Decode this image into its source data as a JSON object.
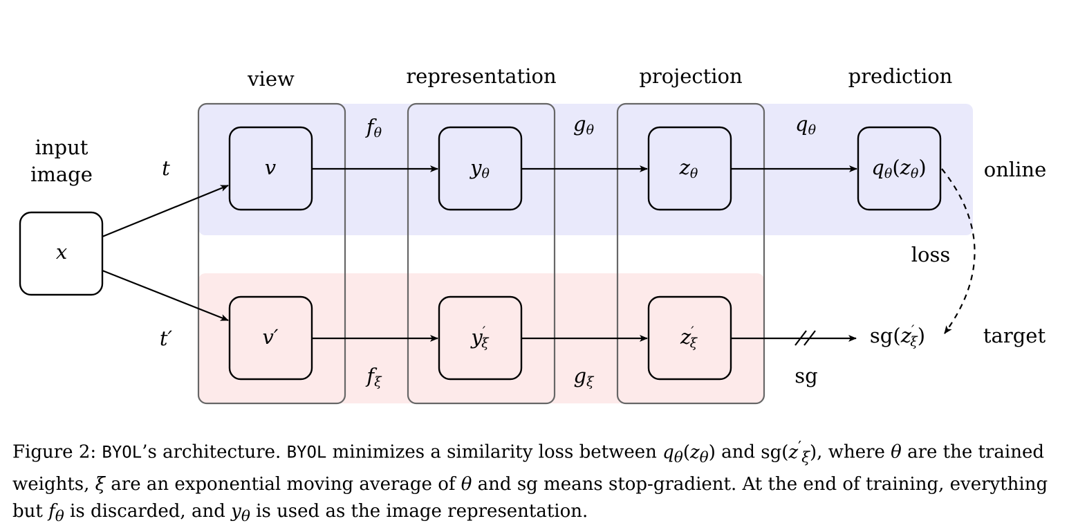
{
  "headers": {
    "view": "view",
    "representation": "representation",
    "projection": "projection",
    "prediction": "prediction"
  },
  "input_label_line1": "input",
  "input_label_line2": "image",
  "branch_labels": {
    "online": "online",
    "target": "target"
  },
  "loss_label": "loss",
  "sg_label": "sg",
  "math": {
    "x": "x",
    "t": "t",
    "t_prime": "t′",
    "v": "v",
    "v_prime": "v′",
    "f": "f",
    "g": "g",
    "q": "q",
    "y": "y",
    "z": "z",
    "theta": "θ",
    "xi": "ξ",
    "prime": "′",
    "open_paren": "(",
    "close_paren": ")",
    "sg_fn": "sg"
  },
  "colors": {
    "online": "#e9e9fb",
    "target": "#fdeaea",
    "group_border": "#666666"
  },
  "caption": {
    "figure_label": "Figure 2:",
    "byol": "BYOL",
    "part1": "’s architecture.",
    "part2": "minimizes a similarity loss between",
    "and": "and",
    "part3": ", where",
    "part4": "are the trained weights,",
    "part5": "are an exponential moving average of",
    "part6": "and",
    "part7": "means stop-gradient. At the end of training, everything but",
    "part8": "is discarded, and",
    "part9": "is used as the image representation."
  }
}
